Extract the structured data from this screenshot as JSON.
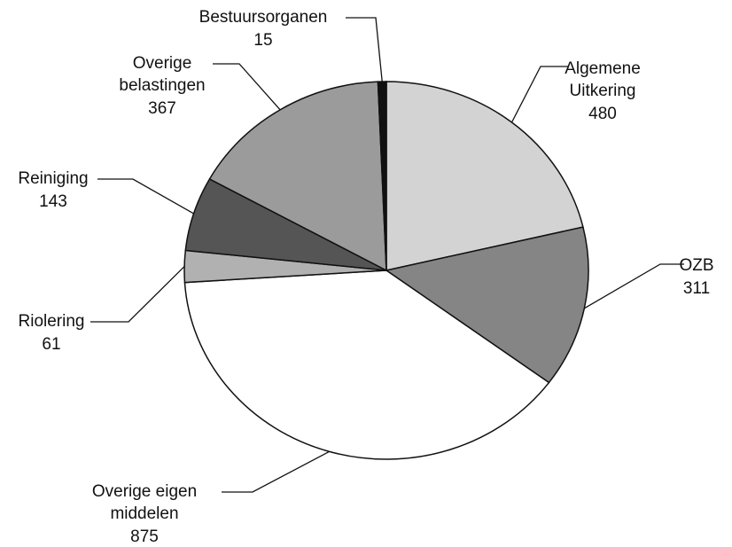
{
  "chart_data": {
    "type": "pie",
    "categories": [
      [
        "Algemene",
        "Uitkering"
      ],
      [
        "OZB"
      ],
      [
        "Overige eigen",
        "middelen"
      ],
      [
        "Riolering"
      ],
      [
        "Reiniging"
      ],
      [
        "Overige",
        "belastingen"
      ],
      [
        "Bestuursorganen"
      ]
    ],
    "values": [
      480,
      311,
      875,
      61,
      143,
      367,
      15
    ],
    "colors": [
      "#d3d3d3",
      "#858585",
      "#ffffff",
      "#b1b1b1",
      "#555555",
      "#9b9b9b",
      "#111111"
    ]
  }
}
